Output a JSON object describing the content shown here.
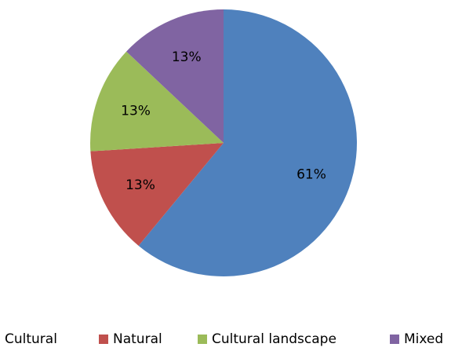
{
  "chart_data": {
    "type": "pie",
    "categories": [
      "Cultural",
      "Natural",
      "Cultural landscape",
      "Mixed"
    ],
    "values": [
      61,
      13,
      13,
      13
    ],
    "value_labels": [
      "61%",
      "13%",
      "13%",
      "13%"
    ],
    "colors": [
      "#4f81bd",
      "#c0504d",
      "#9bbb59",
      "#8064a2"
    ],
    "legend": "bottom"
  }
}
